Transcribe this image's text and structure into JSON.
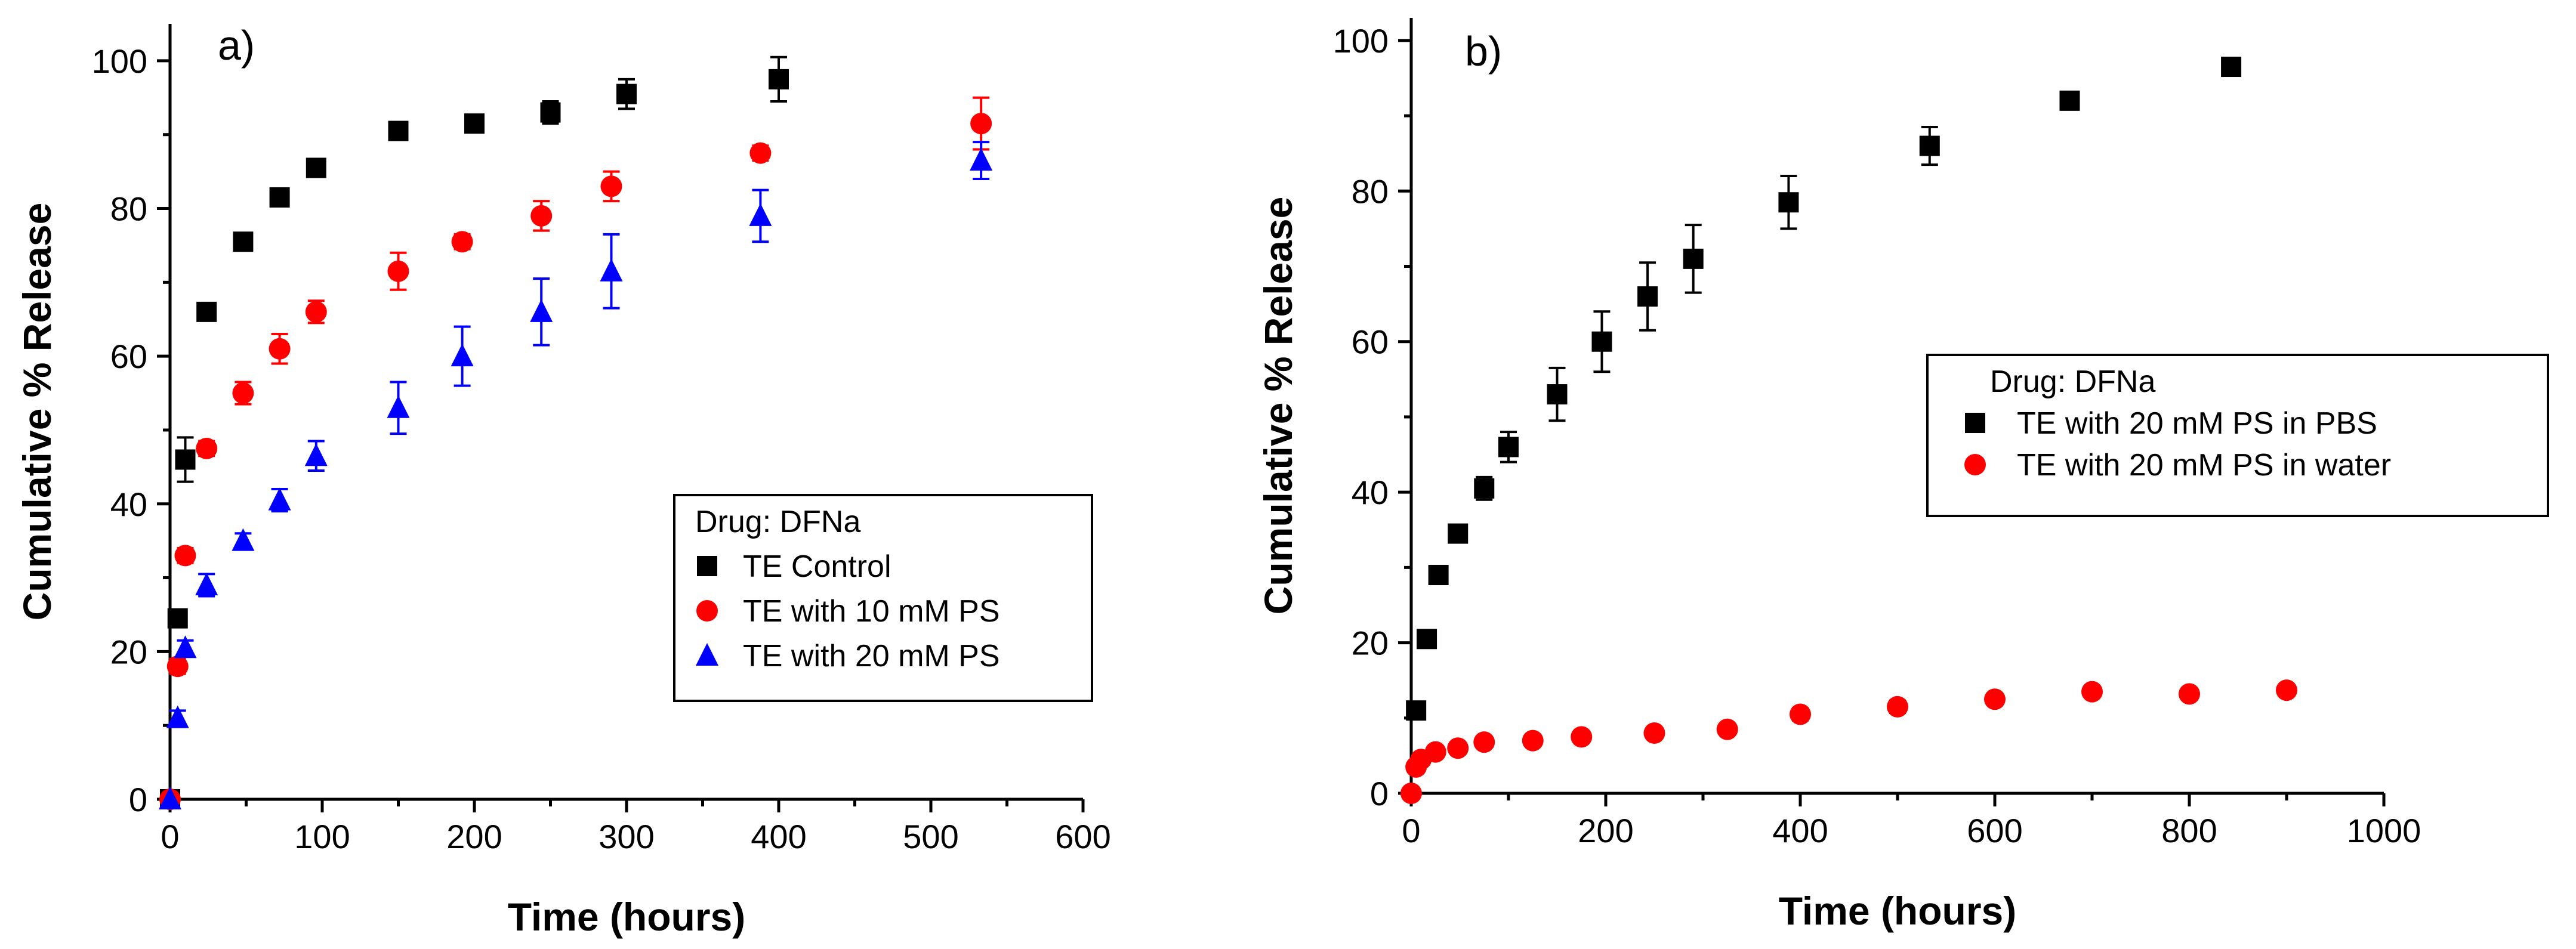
{
  "chart_data": [
    {
      "type": "scatter",
      "panel_label": "a)",
      "xlabel": "Time (hours)",
      "ylabel": "Cumulative % Release",
      "xlim": [
        0,
        600
      ],
      "ylim": [
        0,
        105
      ],
      "xticks": [
        0,
        100,
        200,
        300,
        400,
        500,
        600
      ],
      "yticks": [
        0,
        20,
        40,
        60,
        80,
        100
      ],
      "legend": {
        "title": "Drug: DFNa",
        "position": "center-right"
      },
      "series": [
        {
          "name": "TE Control",
          "marker": "square",
          "color": "#000000",
          "points": [
            {
              "x": 0,
              "y": 0,
              "err": 0
            },
            {
              "x": 5,
              "y": 24.5,
              "err": 1.0
            },
            {
              "x": 10,
              "y": 46,
              "err": 3.0
            },
            {
              "x": 24,
              "y": 66,
              "err": 1.0
            },
            {
              "x": 48,
              "y": 75.5,
              "err": 1.0
            },
            {
              "x": 72,
              "y": 81.5,
              "err": 1.0
            },
            {
              "x": 96,
              "y": 85.5,
              "err": 1.0
            },
            {
              "x": 150,
              "y": 90.5,
              "err": 1.0
            },
            {
              "x": 200,
              "y": 91.5,
              "err": 1.0
            },
            {
              "x": 250,
              "y": 93,
              "err": 1.5
            },
            {
              "x": 300,
              "y": 95.5,
              "err": 2.0
            },
            {
              "x": 400,
              "y": 97.5,
              "err": 3.0
            }
          ]
        },
        {
          "name": "TE with 10 mM PS",
          "marker": "circle",
          "color": "#ff0000",
          "points": [
            {
              "x": 0,
              "y": 0,
              "err": 0
            },
            {
              "x": 5,
              "y": 18,
              "err": 1.0
            },
            {
              "x": 10,
              "y": 33,
              "err": 1.0
            },
            {
              "x": 24,
              "y": 47.5,
              "err": 1.0
            },
            {
              "x": 48,
              "y": 55,
              "err": 1.5
            },
            {
              "x": 72,
              "y": 61,
              "err": 2.0
            },
            {
              "x": 96,
              "y": 66,
              "err": 1.5
            },
            {
              "x": 150,
              "y": 71.5,
              "err": 2.5
            },
            {
              "x": 192,
              "y": 75.5,
              "err": 1.0
            },
            {
              "x": 244,
              "y": 79,
              "err": 2.0
            },
            {
              "x": 290,
              "y": 83,
              "err": 2.0
            },
            {
              "x": 388,
              "y": 87.5,
              "err": 1.0
            },
            {
              "x": 533,
              "y": 91.5,
              "err": 3.5
            }
          ]
        },
        {
          "name": "TE with 20 mM PS",
          "marker": "triangle",
          "color": "#0000ff",
          "points": [
            {
              "x": 0,
              "y": 0,
              "err": 0
            },
            {
              "x": 5,
              "y": 11,
              "err": 1.0
            },
            {
              "x": 10,
              "y": 20.5,
              "err": 1.0
            },
            {
              "x": 24,
              "y": 29,
              "err": 1.5
            },
            {
              "x": 48,
              "y": 35,
              "err": 1.0
            },
            {
              "x": 72,
              "y": 40.5,
              "err": 1.5
            },
            {
              "x": 96,
              "y": 46.5,
              "err": 2.0
            },
            {
              "x": 150,
              "y": 53,
              "err": 3.5
            },
            {
              "x": 192,
              "y": 60,
              "err": 4.0
            },
            {
              "x": 244,
              "y": 66,
              "err": 4.5
            },
            {
              "x": 290,
              "y": 71.5,
              "err": 5.0
            },
            {
              "x": 388,
              "y": 79,
              "err": 3.5
            },
            {
              "x": 533,
              "y": 86.5,
              "err": 2.5
            }
          ]
        }
      ]
    },
    {
      "type": "scatter",
      "panel_label": "b)",
      "xlabel": "Time (hours)",
      "ylabel": "Cumulative % Release",
      "xlim": [
        0,
        1000
      ],
      "ylim": [
        0,
        103
      ],
      "xticks": [
        0,
        200,
        400,
        600,
        800,
        1000
      ],
      "yticks": [
        0,
        20,
        40,
        60,
        80,
        100
      ],
      "legend": {
        "title": "Drug: DFNa",
        "position": "center-right"
      },
      "series": [
        {
          "name": "TE with 20 mM PS in PBS",
          "marker": "square",
          "color": "#000000",
          "points": [
            {
              "x": 5,
              "y": 11,
              "err": 1.0
            },
            {
              "x": 16,
              "y": 20.5,
              "err": 1.0
            },
            {
              "x": 28,
              "y": 29,
              "err": 1.0
            },
            {
              "x": 48,
              "y": 34.5,
              "err": 1.0
            },
            {
              "x": 75,
              "y": 40.5,
              "err": 1.5
            },
            {
              "x": 100,
              "y": 46,
              "err": 2.0
            },
            {
              "x": 150,
              "y": 53,
              "err": 3.5
            },
            {
              "x": 196,
              "y": 60,
              "err": 4.0
            },
            {
              "x": 243,
              "y": 66,
              "err": 4.5
            },
            {
              "x": 290,
              "y": 71,
              "err": 4.5
            },
            {
              "x": 388,
              "y": 78.5,
              "err": 3.5
            },
            {
              "x": 533,
              "y": 86,
              "err": 2.5
            },
            {
              "x": 677,
              "y": 92,
              "err": 1.0
            },
            {
              "x": 843,
              "y": 96.5,
              "err": 1.0
            }
          ]
        },
        {
          "name": "TE with 20 mM PS in water",
          "marker": "circle",
          "color": "#ff0000",
          "points": [
            {
              "x": 0,
              "y": 0,
              "err": 0
            },
            {
              "x": 5,
              "y": 3.5,
              "err": 0.5
            },
            {
              "x": 10,
              "y": 4.5,
              "err": 0.5
            },
            {
              "x": 25,
              "y": 5.5,
              "err": 0.5
            },
            {
              "x": 48,
              "y": 6,
              "err": 0.5
            },
            {
              "x": 75,
              "y": 6.8,
              "err": 0.5
            },
            {
              "x": 125,
              "y": 7,
              "err": 0.5
            },
            {
              "x": 175,
              "y": 7.5,
              "err": 0.5
            },
            {
              "x": 250,
              "y": 8,
              "err": 0.5
            },
            {
              "x": 325,
              "y": 8.5,
              "err": 0.5
            },
            {
              "x": 400,
              "y": 10.5,
              "err": 0.8
            },
            {
              "x": 500,
              "y": 11.5,
              "err": 0.8
            },
            {
              "x": 600,
              "y": 12.5,
              "err": 0.5
            },
            {
              "x": 700,
              "y": 13.5,
              "err": 0.5
            },
            {
              "x": 800,
              "y": 13.2,
              "err": 0.5
            },
            {
              "x": 900,
              "y": 13.7,
              "err": 0.5
            }
          ]
        }
      ]
    }
  ]
}
